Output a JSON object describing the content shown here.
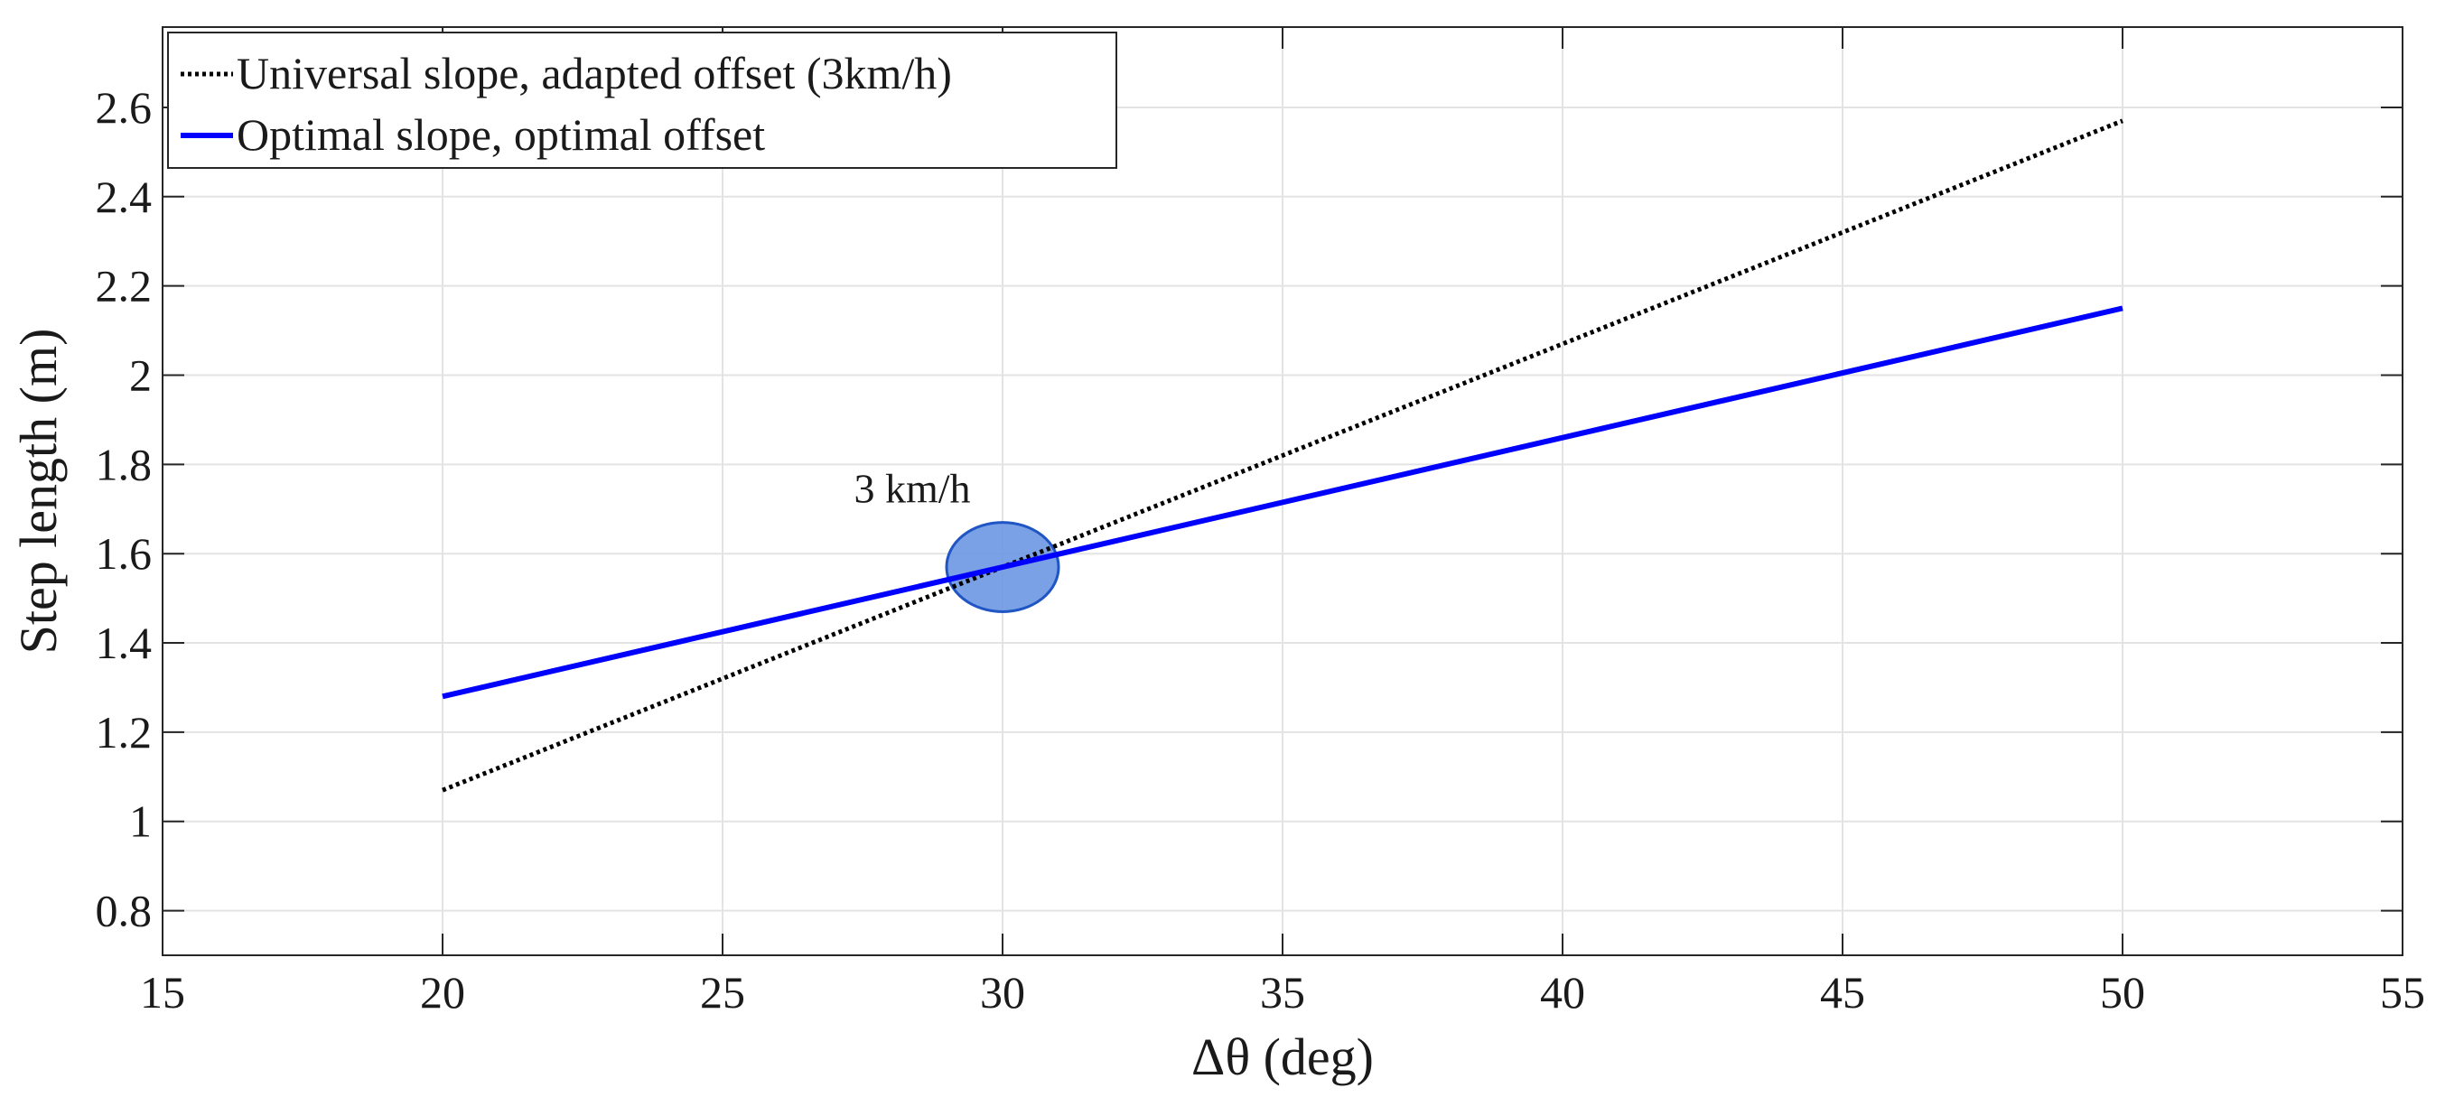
{
  "chart_data": {
    "type": "line",
    "title": "",
    "xlabel": "Δθ (deg)",
    "ylabel": "Step length (m)",
    "xlim": [
      15,
      55
    ],
    "ylim": [
      0.7,
      2.78
    ],
    "xticks": [
      15,
      20,
      25,
      30,
      35,
      40,
      45,
      50,
      55
    ],
    "yticks": [
      0.8,
      1,
      1.2,
      1.4,
      1.6,
      1.8,
      2,
      2.2,
      2.4,
      2.6
    ],
    "xtick_labels": [
      "15",
      "20",
      "25",
      "30",
      "35",
      "40",
      "45",
      "50",
      "55"
    ],
    "ytick_labels": [
      "0.8",
      "1",
      "1.2",
      "1.4",
      "1.6",
      "1.8",
      "2",
      "2.2",
      "2.4",
      "2.6"
    ],
    "grid": true,
    "legend_position": "top-left",
    "series": [
      {
        "name": "Universal slope, adapted offset (3km/h)",
        "style": "dotted",
        "color": "#000000",
        "x": [
          20,
          50
        ],
        "y": [
          1.07,
          2.57
        ]
      },
      {
        "name": "Optimal slope, optimal offset",
        "style": "solid",
        "color": "#0000ff",
        "x": [
          20,
          50
        ],
        "y": [
          1.28,
          2.15
        ]
      }
    ],
    "annotations": [
      {
        "text": "3 km/h",
        "shape": "ellipse",
        "center": [
          30,
          1.57
        ],
        "radius": [
          1.0,
          0.1
        ],
        "fill": "#6f98e3",
        "stroke": "#1f55c4"
      }
    ]
  }
}
